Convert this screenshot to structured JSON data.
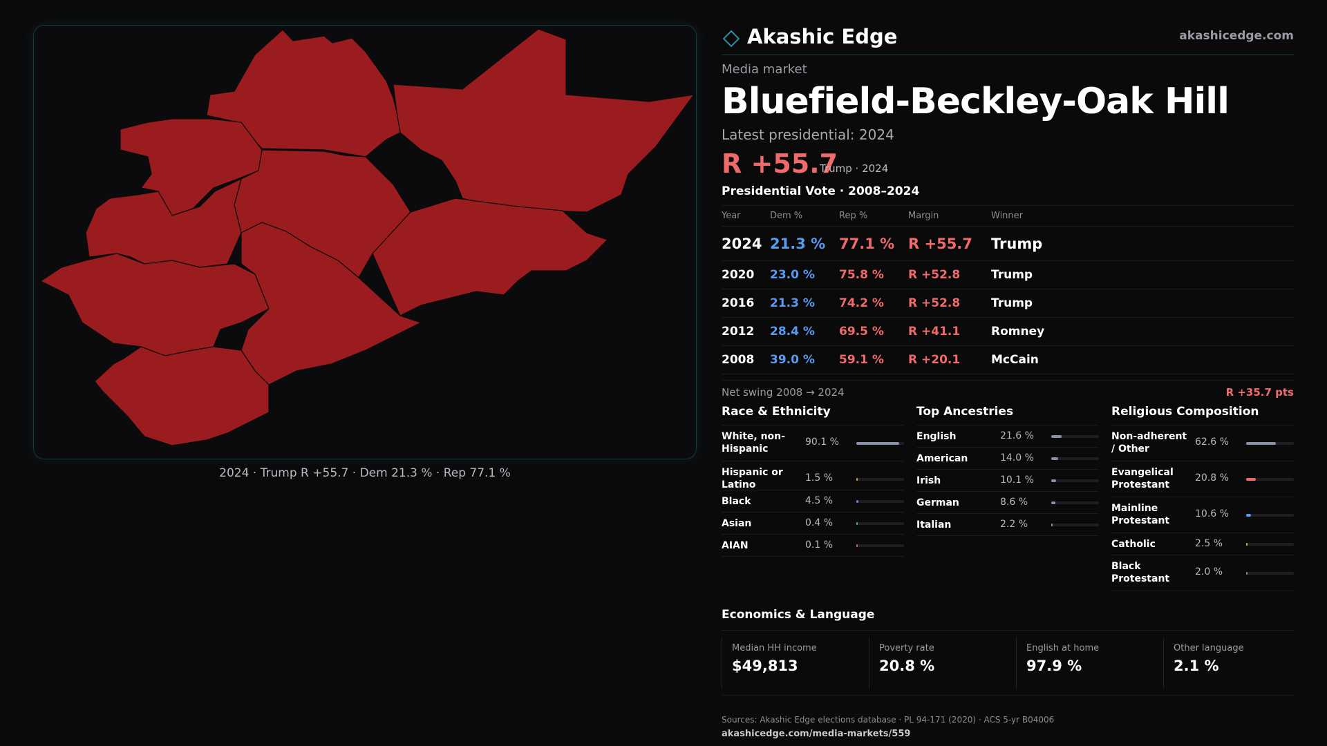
{
  "brand": {
    "name": "Akashic Edge",
    "site": "akashicedge.com"
  },
  "market": {
    "eyebrow": "Media market",
    "title": "Bluefield-Beckley-Oak Hill",
    "latest": "Latest presidential: 2024",
    "margin": "R +55.7",
    "margin_sub": "Trump · 2024"
  },
  "map": {
    "caption": "2024 · Trump R +55.7 · Dem 21.3 % · Rep 77.1 %",
    "fill_color": "#9b1c1f",
    "border_color": "#123a44"
  },
  "votes": {
    "title": "Presidential Vote · 2008–2024",
    "headers": {
      "year": "Year",
      "dem": "Dem %",
      "rep": "Rep %",
      "margin": "Margin",
      "winner": "Winner"
    },
    "rows": [
      {
        "year": "2024",
        "dem": "21.3 %",
        "rep": "77.1 %",
        "margin": "R +55.7",
        "winner": "Trump"
      },
      {
        "year": "2020",
        "dem": "23.0 %",
        "rep": "75.8 %",
        "margin": "R +52.8",
        "winner": "Trump"
      },
      {
        "year": "2016",
        "dem": "21.3 %",
        "rep": "74.2 %",
        "margin": "R +52.8",
        "winner": "Trump"
      },
      {
        "year": "2012",
        "dem": "28.4 %",
        "rep": "69.5 %",
        "margin": "R +41.1",
        "winner": "Romney"
      },
      {
        "year": "2008",
        "dem": "39.0 %",
        "rep": "59.1 %",
        "margin": "R +20.1",
        "winner": "McCain"
      }
    ],
    "swing_label": "Net swing 2008 → 2024",
    "swing_value": "R +35.7 pts"
  },
  "race": {
    "title": "Race & Ethnicity",
    "items": [
      {
        "label": "White, non-Hispanic",
        "value": "90.1 %",
        "pct": 90.1,
        "color": "#8a90a6"
      },
      {
        "label": "Hispanic or Latino",
        "value": "1.5 %",
        "pct": 1.5,
        "color": "#e0a040"
      },
      {
        "label": "Black",
        "value": "4.5 %",
        "pct": 4.5,
        "color": "#8f6ad8"
      },
      {
        "label": "Asian",
        "value": "0.4 %",
        "pct": 0.4,
        "color": "#3fb5a8"
      },
      {
        "label": "AIAN",
        "value": "0.1 %",
        "pct": 0.1,
        "color": "#c06a6a"
      }
    ]
  },
  "ancestry": {
    "title": "Top Ancestries",
    "items": [
      {
        "label": "English",
        "value": "21.6 %",
        "pct": 21.6,
        "color": "#8a90a6"
      },
      {
        "label": "American",
        "value": "14.0 %",
        "pct": 14.0,
        "color": "#8a90a6"
      },
      {
        "label": "Irish",
        "value": "10.1 %",
        "pct": 10.1,
        "color": "#8a90a6"
      },
      {
        "label": "German",
        "value": "8.6 %",
        "pct": 8.6,
        "color": "#8a90a6"
      },
      {
        "label": "Italian",
        "value": "2.2 %",
        "pct": 2.2,
        "color": "#8a90a6"
      }
    ]
  },
  "religion": {
    "title": "Religious Composition",
    "items": [
      {
        "label": "Non-adherent / Other",
        "value": "62.6 %",
        "pct": 62.6,
        "color": "#8a90a6"
      },
      {
        "label": "Evangelical Protestant",
        "value": "20.8 %",
        "pct": 20.8,
        "color": "#ef6a6a"
      },
      {
        "label": "Mainline Protestant",
        "value": "10.6 %",
        "pct": 10.6,
        "color": "#5a9bf0"
      },
      {
        "label": "Catholic",
        "value": "2.5 %",
        "pct": 2.5,
        "color": "#e0b040"
      },
      {
        "label": "Black Protestant",
        "value": "2.0 %",
        "pct": 2.0,
        "color": "#8a90a6"
      }
    ]
  },
  "economics": {
    "title": "Economics & Language",
    "cards": [
      {
        "label": "Median HH income",
        "value": "$49,813"
      },
      {
        "label": "Poverty rate",
        "value": "20.8 %"
      },
      {
        "label": "English at home",
        "value": "97.9 %"
      },
      {
        "label": "Other language",
        "value": "2.1 %"
      }
    ]
  },
  "footer": {
    "sources": "Sources: Akashic Edge elections database · PL 94-171 (2020) · ACS 5-yr B04006",
    "url": "akashicedge.com/media-markets/559"
  }
}
